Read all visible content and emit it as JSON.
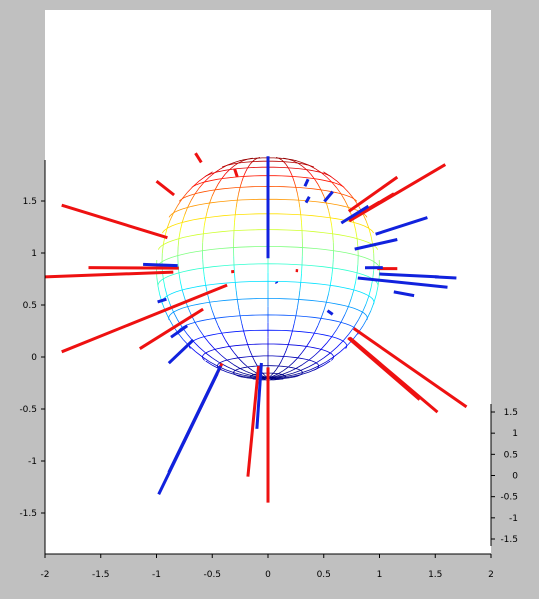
{
  "window": {
    "background": "#c0c0c0",
    "plot_background": "#ffffff"
  },
  "chart_data": {
    "type": "3d-sphere-with-normal-vectors",
    "title": "",
    "xlabel": "",
    "ylabel": "",
    "zlabel": "",
    "grid": false,
    "legend": "none",
    "x_axis": {
      "lim": [
        -2,
        2
      ],
      "ticks": [
        -2,
        -1.5,
        -1,
        -0.5,
        0,
        0.5,
        1,
        1.5,
        2
      ],
      "tick_labels": [
        "-2",
        "-1.5",
        "-1",
        "-0.5",
        "0",
        "0.5",
        "1",
        "1.5",
        "2"
      ]
    },
    "y_axis": {
      "lim": [
        -1.85,
        1.85
      ],
      "ticks": [
        -1.5,
        -1,
        -0.5,
        0,
        0.5,
        1,
        1.5
      ],
      "tick_labels": [
        "-1.5",
        "-1",
        "-0.5",
        "0",
        "0.5",
        "1",
        "1.5"
      ]
    },
    "z_axis": {
      "lim": [
        -1.6,
        1.6
      ],
      "ticks": [
        -1.5,
        -1,
        -0.5,
        0,
        0.5,
        1,
        1.5
      ],
      "tick_labels": [
        "-1.5",
        "-1",
        "-0.5",
        "0",
        "0.5",
        "1",
        "1.5"
      ]
    },
    "sphere": {
      "center": [
        0,
        0.85
      ],
      "radius": 1,
      "colormap": "jet",
      "meridians": 20,
      "parallels": 20
    },
    "series": [
      {
        "color": "#ee1111",
        "segments": [
          [
            0.4,
            0.05,
            -1.85,
            0.05
          ],
          [
            0.85,
            0.05,
            -2.0,
            0.77
          ],
          [
            0.8,
            0.08,
            -1.61,
            0.86
          ],
          [
            0.95,
            0.0,
            -1.85,
            1.46
          ],
          [
            1.1,
            0.07,
            -1.0,
            1.69
          ],
          [
            1.53,
            0.04,
            -0.65,
            1.96
          ],
          [
            1.58,
            0.06,
            -0.3,
            1.81
          ],
          [
            0.7,
            0.07,
            -1.15,
            0.08
          ],
          [
            0.96,
            0.06,
            -0.33,
            0.82
          ],
          [
            1.0,
            0.4,
            -0.76,
            -0.83
          ],
          [
            0.94,
            0.33,
            -0.18,
            -1.15
          ],
          [
            0.95,
            0.0,
            0.0,
            -1.4
          ],
          [
            0.99,
            0.36,
            0.27,
            0.83
          ],
          [
            0.97,
            0.38,
            1.0,
            1.49
          ],
          [
            0.91,
            0.42,
            1.16,
            1.73
          ],
          [
            0.86,
            0.45,
            1.59,
            1.85
          ],
          [
            0.96,
            0.39,
            1.78,
            -0.48
          ],
          [
            0.98,
            0.43,
            1.36,
            -0.41
          ],
          [
            0.99,
            0.16,
            1.52,
            -0.53
          ],
          [
            0.98,
            0.03,
            1.13,
            1.57
          ],
          [
            0.98,
            0.0,
            1.16,
            0.85
          ]
        ]
      },
      {
        "color": "#1122dd",
        "segments": [
          [
            0.1,
            0.0,
            0.0,
            1.93
          ],
          [
            0.89,
            0.06,
            0.36,
            1.71
          ],
          [
            0.99,
            0.13,
            0.37,
            1.54
          ],
          [
            0.82,
            0.0,
            0.58,
            1.59
          ],
          [
            0.79,
            0.06,
            0.9,
            1.45
          ],
          [
            0.8,
            0.08,
            1.16,
            1.13
          ],
          [
            1.02,
            0.07,
            1.43,
            1.34
          ],
          [
            0.87,
            0.11,
            1.03,
            0.86
          ],
          [
            1.0,
            0.01,
            1.53,
            0.77
          ],
          [
            1.5,
            0.14,
            1.69,
            0.76
          ],
          [
            0.81,
            0.02,
            1.61,
            0.67
          ],
          [
            0.81,
            0.09,
            -1.12,
            0.89
          ],
          [
            1.2,
            0.15,
            -0.99,
            0.53
          ],
          [
            0.91,
            0.08,
            -0.87,
            0.19
          ],
          [
            0.96,
            0.16,
            -0.89,
            -0.06
          ],
          [
            0.91,
            0.21,
            -0.1,
            -0.69
          ],
          [
            1.03,
            0.17,
            -0.89,
            -1.11
          ],
          [
            1.11,
            0.13,
            -0.98,
            -1.32
          ],
          [
            0.64,
            0.16,
            0.08,
            0.71
          ],
          [
            0.72,
            0.17,
            0.58,
            0.41
          ],
          [
            1.15,
            0.17,
            1.31,
            0.59
          ]
        ]
      }
    ]
  }
}
